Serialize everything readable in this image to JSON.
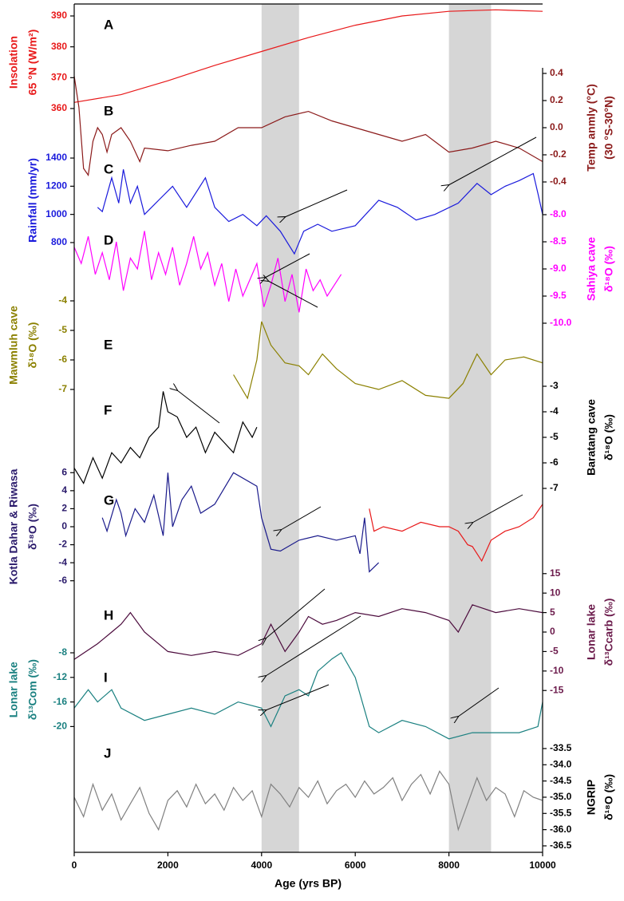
{
  "chart_data": {
    "type": "line",
    "xlabel": "Age (yrs BP)",
    "xlim": [
      0,
      10000
    ],
    "xticks": [
      0,
      2000,
      4000,
      6000,
      8000,
      10000
    ],
    "shaded_intervals": [
      [
        4000,
        4800
      ],
      [
        8000,
        8900
      ]
    ],
    "shade_color": "#d6d6d6",
    "panels": [
      {
        "label": "A",
        "side": "left",
        "ylabel": [
          "Insolation",
          "65 °N (W/m²)"
        ],
        "axis_color": "#e8191a",
        "ylim": [
          357,
          393
        ],
        "yticks": [
          360,
          370,
          380,
          390
        ],
        "series": [
          {
            "color": "#e8191a",
            "x": [
              0,
              1000,
              2000,
              3000,
              4000,
              5000,
              6000,
              7000,
              8000,
              9000,
              10000
            ],
            "values": [
              362,
              364.5,
              369,
              374,
              378.5,
              383,
              387,
              390,
              391.5,
              392,
              391.5
            ]
          }
        ]
      },
      {
        "label": "B",
        "side": "right",
        "ylabel": [
          "Temp anmly (°C)",
          "(30 °S-30°N)"
        ],
        "axis_color": "#8b1a1a",
        "ylim": [
          -0.5,
          0.5
        ],
        "yticks": [
          0.4,
          0.2,
          {
            "value": 0,
            "label": "0.0"
          },
          -0.2,
          -0.4
        ],
        "series": [
          {
            "color": "#8b1a1a",
            "x": [
              0,
              100,
              200,
              300,
              400,
              500,
              600,
              700,
              800,
              1000,
              1200,
              1400,
              1500,
              2000,
              2500,
              3000,
              3500,
              4000,
              4500,
              5000,
              5500,
              6000,
              6500,
              7000,
              7500,
              8000,
              8500,
              9000,
              9500,
              10000
            ],
            "values": [
              0.38,
              0.15,
              -0.3,
              -0.35,
              -0.1,
              0.0,
              -0.05,
              -0.18,
              -0.05,
              0.0,
              -0.1,
              -0.25,
              -0.15,
              -0.17,
              -0.13,
              -0.1,
              0.0,
              0.0,
              0.08,
              0.12,
              0.05,
              0.0,
              -0.05,
              -0.1,
              -0.05,
              -0.18,
              -0.15,
              -0.1,
              -0.15,
              -0.25
            ]
          }
        ]
      },
      {
        "label": "C",
        "side": "left",
        "ylabel": [
          "Rainfall (mm/yr)"
        ],
        "axis_color": "#1a1adc",
        "ylim": [
          700,
          1500
        ],
        "yticks": [
          800,
          1000,
          1200,
          1400
        ],
        "series": [
          {
            "color": "#1a1adc",
            "x": [
              500,
              600,
              800,
              950,
              1050,
              1200,
              1350,
              1500,
              1800,
              2100,
              2400,
              2800,
              3000,
              3300,
              3600,
              3900,
              4100,
              4400,
              4700,
              4900,
              5200,
              5500,
              6000,
              6500,
              6900,
              7300,
              7700,
              8200,
              8600,
              8900,
              9200,
              9500,
              9800,
              9900,
              10000
            ],
            "values": [
              1050,
              1020,
              1260,
              1080,
              1320,
              1080,
              1200,
              1000,
              1100,
              1200,
              1050,
              1260,
              1050,
              950,
              1000,
              920,
              990,
              880,
              720,
              880,
              930,
              880,
              920,
              1100,
              1050,
              960,
              1000,
              1080,
              1220,
              1140,
              1200,
              1240,
              1290,
              1150,
              1000
            ]
          }
        ]
      },
      {
        "label": "D",
        "side": "right",
        "ylabel": [
          "Sahiya cave",
          "δ¹⁸O (‰)"
        ],
        "axis_color": "#ff00ff",
        "ylim": [
          -10.2,
          -7.8
        ],
        "yticks": [
          {
            "value": -8,
            "label": "-8.0"
          },
          -8.5,
          {
            "value": -9,
            "label": "-9.0"
          },
          -9.5,
          {
            "value": -10,
            "label": "-10.0"
          }
        ],
        "series": [
          {
            "color": "#ff00ff",
            "x": [
              0,
              150,
              300,
              450,
              600,
              750,
              900,
              1050,
              1200,
              1350,
              1500,
              1650,
              1800,
              1950,
              2100,
              2250,
              2400,
              2550,
              2700,
              2850,
              3000,
              3150,
              3300,
              3450,
              3600,
              3750,
              3900,
              4050,
              4200,
              4350,
              4500,
              4650,
              4800,
              4950,
              5100,
              5250,
              5400,
              5550,
              5700
            ],
            "values": [
              -8.6,
              -8.9,
              -8.4,
              -9.1,
              -8.7,
              -9.2,
              -8.5,
              -9.4,
              -8.8,
              -9.0,
              -8.3,
              -9.2,
              -8.7,
              -9.1,
              -8.6,
              -9.3,
              -8.9,
              -8.4,
              -9.0,
              -8.7,
              -9.3,
              -8.9,
              -9.6,
              -9.0,
              -9.5,
              -9.2,
              -8.9,
              -9.7,
              -9.3,
              -8.8,
              -9.6,
              -9.1,
              -9.8,
              -9.0,
              -9.4,
              -9.2,
              -9.5,
              -9.3,
              -9.1
            ]
          }
        ]
      },
      {
        "label": "E",
        "side": "left",
        "ylabel": [
          "Mawmluh cave",
          "δ¹⁸O (‰)"
        ],
        "axis_color": "#8b8000",
        "ylim": [
          -7.5,
          -3.5
        ],
        "yticks": [
          -4,
          -5,
          -6,
          -7
        ],
        "series": [
          {
            "color": "#8b8000",
            "x": [
              3400,
              3700,
              3900,
              4000,
              4200,
              4500,
              4800,
              5000,
              5300,
              5600,
              6000,
              6500,
              7000,
              7500,
              8000,
              8300,
              8600,
              8900,
              9200,
              9600,
              10000
            ],
            "values": [
              -6.5,
              -7.3,
              -6.0,
              -4.7,
              -5.5,
              -6.1,
              -6.2,
              -6.5,
              -5.8,
              -6.3,
              -6.8,
              -7.0,
              -6.7,
              -7.2,
              -7.3,
              -6.8,
              -5.8,
              -6.5,
              -6.0,
              -5.9,
              -6.1
            ]
          }
        ]
      },
      {
        "label": "F",
        "side": "right",
        "ylabel": [
          "Baratang cave",
          "δ¹⁸O (‰)"
        ],
        "axis_color": "#000000",
        "ylim": [
          -7.5,
          -2.5
        ],
        "yticks": [
          -3,
          -4,
          -5,
          -6,
          -7
        ],
        "series": [
          {
            "color": "#000000",
            "x": [
              0,
              200,
              400,
              600,
              800,
              1000,
              1200,
              1400,
              1600,
              1800,
              1900,
              2000,
              2200,
              2400,
              2600,
              2800,
              3000,
              3200,
              3400,
              3600,
              3800,
              3900
            ],
            "values": [
              -6.2,
              -6.8,
              -5.8,
              -6.6,
              -5.6,
              -6.0,
              -5.4,
              -5.8,
              -5.0,
              -4.6,
              -3.2,
              -4.0,
              -4.2,
              -5.0,
              -4.6,
              -5.6,
              -4.8,
              -5.2,
              -5.6,
              -4.4,
              -5.0,
              -4.6
            ]
          }
        ]
      },
      {
        "label": "G",
        "side": "left",
        "ylabel": [
          "Kotla Dahar & Riwasa",
          "δ¹⁸O (‰)"
        ],
        "axis_color": "#2a1a6b",
        "ylim": [
          -7,
          7
        ],
        "yticks": [
          6,
          4,
          2,
          0,
          -2,
          -4,
          -6
        ],
        "series": [
          {
            "color": "#1a1a8b",
            "x": [
              600,
              700,
              900,
              1000,
              1100,
              1300,
              1500,
              1700,
              1900,
              2000,
              2100,
              2300,
              2500,
              2700,
              3000,
              3400,
              3900,
              4000,
              4200,
              4400,
              4800,
              5200,
              5600,
              6000,
              6100,
              6200,
              6300,
              6500
            ],
            "values": [
              1,
              -0.5,
              3,
              1.5,
              -1,
              2,
              0.5,
              3.5,
              -1,
              6,
              0,
              3,
              4.5,
              1.5,
              2.5,
              6,
              4.5,
              1,
              -2.5,
              -2.7,
              -1.5,
              -1,
              -1.5,
              -1,
              -3,
              1,
              -5,
              -4
            ]
          },
          {
            "color": "#e8191a",
            "x": [
              6300,
              6400,
              6600,
              7000,
              7400,
              7800,
              8000,
              8200,
              8400,
              8500,
              8700,
              8900,
              9200,
              9500,
              9800,
              10000
            ],
            "values": [
              2,
              -0.5,
              0,
              -0.5,
              0.5,
              0,
              0,
              -0.5,
              -2,
              -2.2,
              -3.8,
              -1.5,
              -0.5,
              0,
              1,
              2.5
            ]
          }
        ]
      },
      {
        "label": "H",
        "side": "right",
        "ylabel": [
          "Lonar lake",
          "δ¹³Ccarb (‰)"
        ],
        "axis_color": "#6b1a4b",
        "ylim": [
          -17,
          17
        ],
        "yticks": [
          15,
          10,
          5,
          0,
          -5,
          -10,
          -15
        ],
        "series": [
          {
            "color": "#4b0a3c",
            "x": [
              0,
              500,
              800,
              1000,
              1200,
              1500,
              2000,
              2500,
              3000,
              3500,
              4000,
              4200,
              4500,
              4800,
              5000,
              5300,
              5600,
              6000,
              6500,
              7000,
              7500,
              8000,
              8200,
              8500,
              9000,
              9500,
              10000
            ],
            "values": [
              -7,
              -3,
              0,
              2,
              5,
              0,
              -5,
              -6,
              -5,
              -6,
              -3,
              2,
              -5,
              0,
              4,
              2,
              3,
              5,
              4,
              6,
              5,
              3,
              0,
              7,
              5,
              6,
              5
            ]
          }
        ]
      },
      {
        "label": "I",
        "side": "left",
        "ylabel": [
          "Lonar lake",
          "δ¹³Com (‰)"
        ],
        "axis_color": "#1a8080",
        "ylim": [
          -22,
          -6
        ],
        "yticks": [
          -8,
          -12,
          -16,
          -20
        ],
        "series": [
          {
            "color": "#1a8080",
            "x": [
              0,
              300,
              500,
              800,
              1000,
              1500,
              2000,
              2500,
              3000,
              3500,
              4000,
              4200,
              4500,
              4800,
              5000,
              5200,
              5500,
              5700,
              6000,
              6300,
              6500,
              7000,
              7500,
              8000,
              8500,
              9000,
              9500,
              9900,
              10000
            ],
            "values": [
              -17,
              -14,
              -16,
              -14,
              -17,
              -19,
              -18,
              -17,
              -18,
              -16,
              -17,
              -20,
              -15,
              -14,
              -15,
              -11,
              -9,
              -8,
              -12,
              -20,
              -21,
              -19,
              -20,
              -22,
              -21,
              -21,
              -21,
              -20,
              -16
            ]
          }
        ]
      },
      {
        "label": "J",
        "side": "right",
        "ylabel": [
          "NGRIP",
          "δ¹⁸O (‰)"
        ],
        "axis_color": "#000000",
        "ylim": [
          -36.6,
          -33.4
        ],
        "yticks": [
          -33.5,
          {
            "value": -34,
            "label": "-34.0"
          },
          -34.5,
          {
            "value": -35,
            "label": "-35.0"
          },
          -35.5,
          {
            "value": -36,
            "label": "-36.0"
          },
          -36.5
        ],
        "series": [
          {
            "color": "#808080",
            "x": [
              0,
              200,
              400,
              600,
              800,
              1000,
              1200,
              1400,
              1600,
              1800,
              2000,
              2200,
              2400,
              2600,
              2800,
              3000,
              3200,
              3400,
              3600,
              3800,
              4000,
              4200,
              4400,
              4600,
              4800,
              5000,
              5200,
              5400,
              5600,
              5800,
              6000,
              6200,
              6400,
              6600,
              6800,
              7000,
              7200,
              7400,
              7600,
              7800,
              8000,
              8200,
              8400,
              8600,
              8800,
              9000,
              9200,
              9400,
              9600,
              9800,
              10000
            ],
            "values": [
              -35.0,
              -35.6,
              -34.6,
              -35.4,
              -34.9,
              -35.7,
              -35.2,
              -34.7,
              -35.5,
              -36.0,
              -35.1,
              -34.8,
              -35.3,
              -34.6,
              -35.2,
              -34.9,
              -35.4,
              -34.7,
              -35.1,
              -34.8,
              -35.6,
              -34.6,
              -34.9,
              -35.3,
              -34.7,
              -35.0,
              -34.5,
              -35.2,
              -34.8,
              -34.6,
              -35.0,
              -34.5,
              -34.9,
              -34.7,
              -34.4,
              -35.1,
              -34.6,
              -34.3,
              -34.9,
              -34.2,
              -34.6,
              -36.0,
              -35.2,
              -34.4,
              -35.1,
              -34.7,
              -34.9,
              -35.6,
              -34.8,
              -35.0,
              -35.1
            ]
          }
        ]
      }
    ]
  }
}
